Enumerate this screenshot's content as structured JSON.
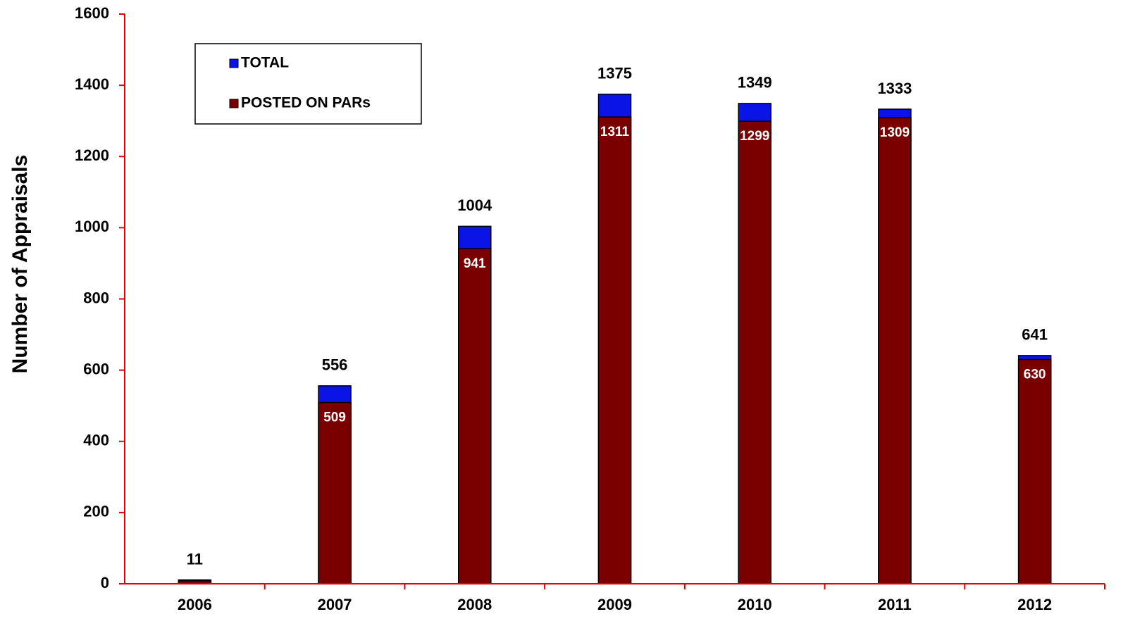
{
  "chart_data": {
    "type": "bar",
    "y_label": "Number of Appraisals",
    "categories": [
      "2006",
      "2007",
      "2008",
      "2009",
      "2010",
      "2011",
      "2012"
    ],
    "series": [
      {
        "name": "TOTAL",
        "color": "#0a14e6",
        "values": [
          11,
          556,
          1004,
          1375,
          1349,
          1333,
          641
        ]
      },
      {
        "name": "POSTED ON PARs",
        "color": "#7a0000",
        "values": [
          8,
          509,
          941,
          1311,
          1299,
          1309,
          630
        ]
      }
    ],
    "ylim": [
      0,
      1600
    ],
    "yticks": [
      0,
      200,
      400,
      600,
      800,
      1000,
      1200,
      1400,
      1600
    ],
    "legend": "top-left",
    "overlap": true
  }
}
